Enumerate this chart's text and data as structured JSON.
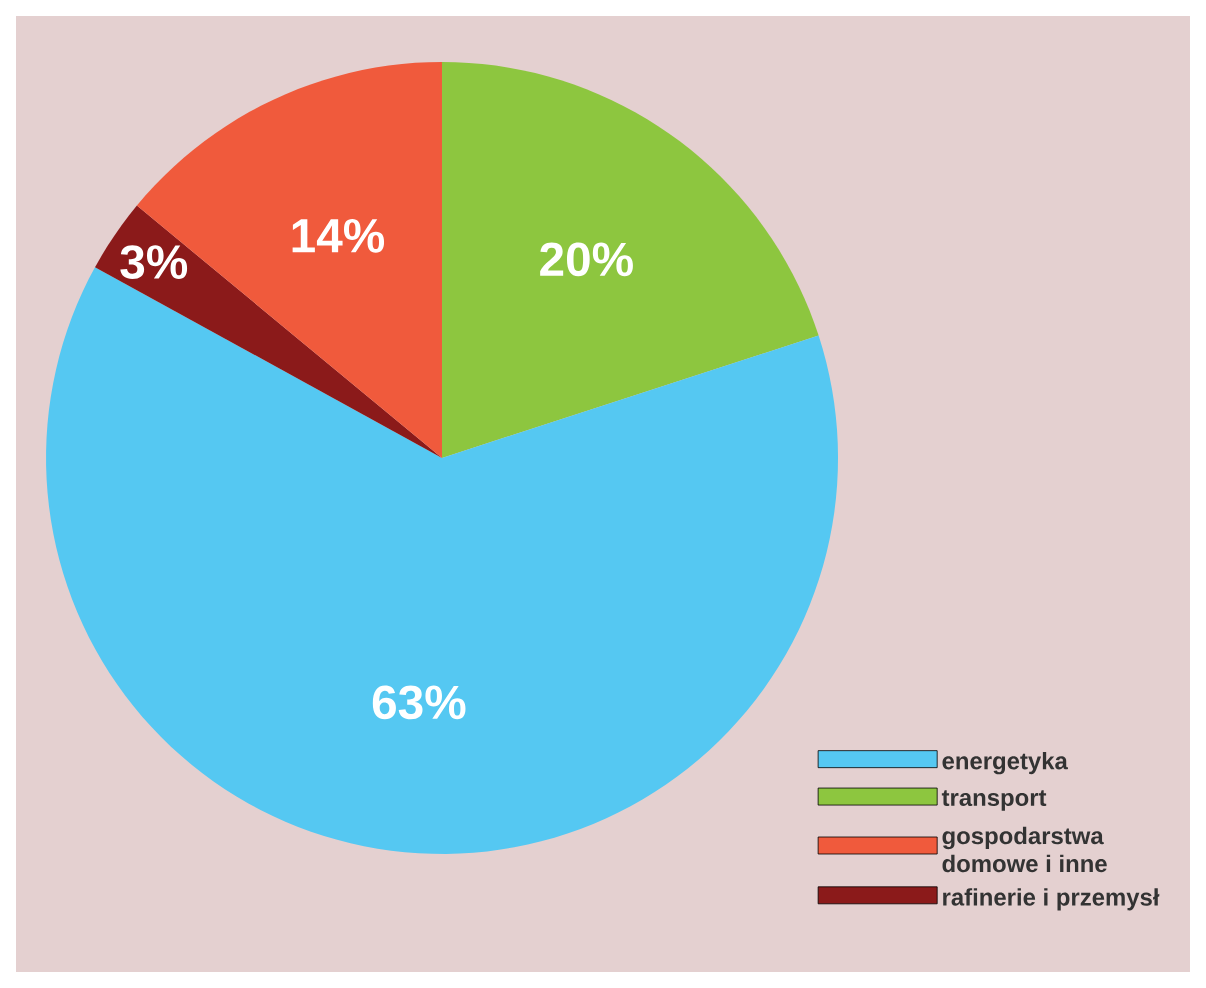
{
  "chart_data": {
    "type": "pie",
    "categories": [
      "energetyka",
      "transport",
      "gospodarstwa domowe i inne",
      "rafinerie i przemysł"
    ],
    "values": [
      63,
      20,
      14,
      3
    ],
    "colors": [
      "#55c8f2",
      "#8dc63f",
      "#f05a3c",
      "#8b1a1a"
    ],
    "value_labels": [
      "63%",
      "20%",
      "14%",
      "3%"
    ],
    "legend": "bottom right"
  }
}
